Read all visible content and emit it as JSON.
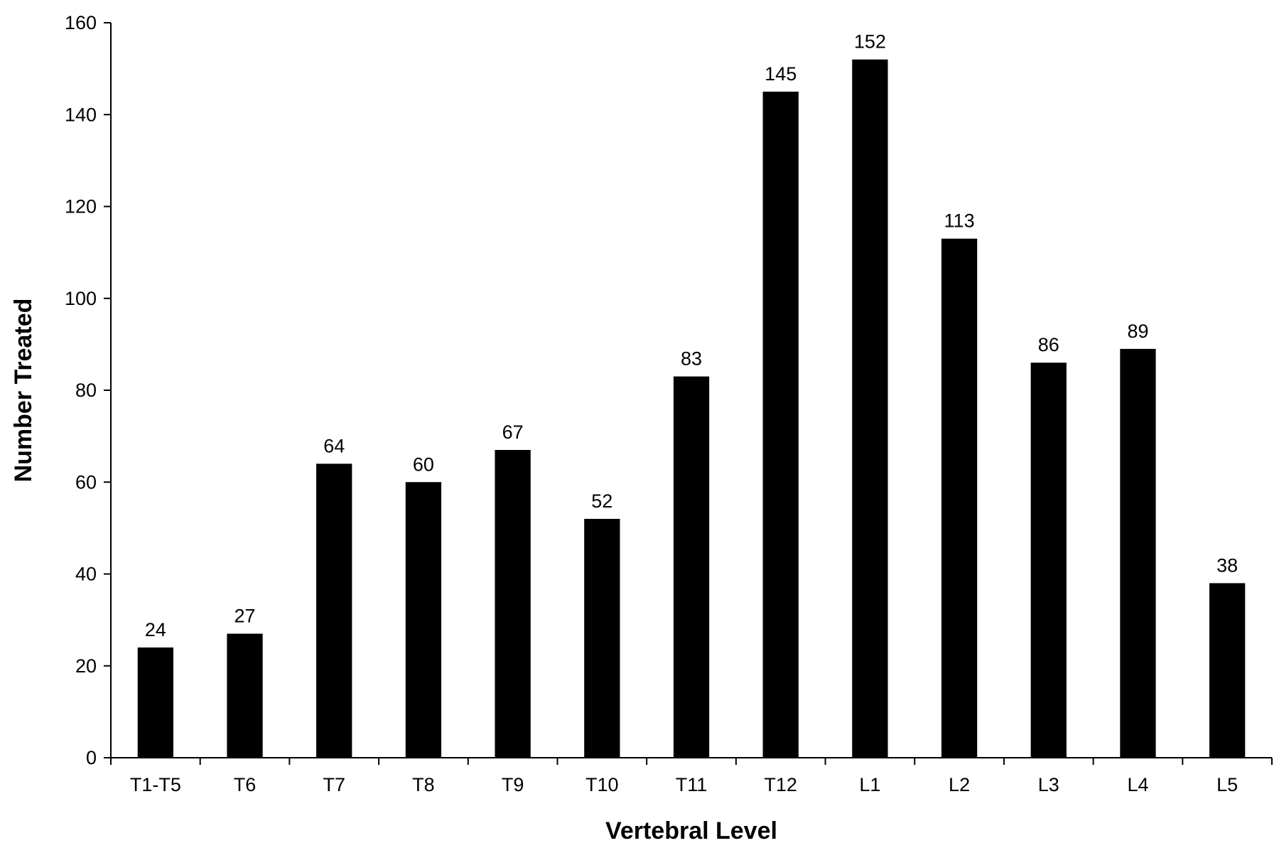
{
  "chart_data": {
    "type": "bar",
    "title": "",
    "xlabel": "Vertebral Level",
    "ylabel": "Number Treated",
    "categories": [
      "T1-T5",
      "T6",
      "T7",
      "T8",
      "T9",
      "T10",
      "T11",
      "T12",
      "L1",
      "L2",
      "L3",
      "L4",
      "L5"
    ],
    "values": [
      24,
      27,
      64,
      60,
      67,
      52,
      83,
      145,
      152,
      113,
      86,
      89,
      38
    ],
    "ylim": [
      0,
      160
    ],
    "yticks": [
      0,
      20,
      40,
      60,
      80,
      100,
      120,
      140,
      160
    ],
    "data_labels": true,
    "grid": false,
    "legend": "none",
    "bar_color": "#000000"
  }
}
